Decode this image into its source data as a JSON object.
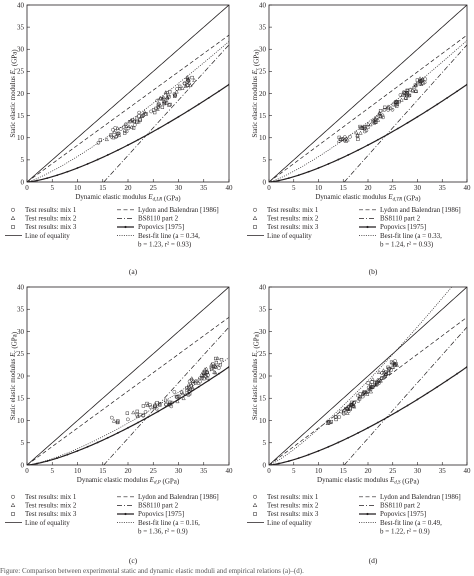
{
  "chart_data": [
    {
      "panel_label": "(a)",
      "type": "scatter",
      "xlabel": "Dynamic elastic modulus E_{d,LR} (GPa)",
      "ylabel": "Static elastic modulus E_c (GPa)",
      "xlim": [
        0,
        40
      ],
      "ylim": [
        0,
        40
      ],
      "x_ticks": [
        "0",
        "5",
        "10",
        "15",
        "20",
        "25",
        "30",
        "35",
        "40"
      ],
      "y_ticks": [
        "0",
        "5",
        "10",
        "15",
        "20",
        "25",
        "30",
        "35",
        "40"
      ],
      "grid": false,
      "scatter_center": [
        [
          15,
          9.5
        ],
        [
          17,
          10.5
        ],
        [
          18,
          11
        ],
        [
          19,
          12
        ],
        [
          20,
          13
        ],
        [
          21,
          13
        ],
        [
          22,
          14
        ],
        [
          23,
          15
        ],
        [
          24,
          15.5
        ],
        [
          25,
          16
        ],
        [
          26,
          17
        ],
        [
          27,
          18
        ],
        [
          28,
          19
        ],
        [
          29,
          20
        ],
        [
          30,
          21
        ],
        [
          31,
          22
        ],
        [
          32,
          23
        ]
      ],
      "scatter_spread": 1.6,
      "scatter_counts": [
        40,
        30,
        30
      ],
      "best_fit": {
        "a": 0.34,
        "b": 1.23,
        "r2": 0.93
      },
      "best_fit_text": "Best-fit line (a = 0.34, b = 1.23, r² = 0.93)"
    },
    {
      "panel_label": "(b)",
      "type": "scatter",
      "xlabel": "Dynamic elastic modulus E_{d,TR} (GPa)",
      "ylabel": "Static elastic modulus E_c (GPa)",
      "xlim": [
        0,
        40
      ],
      "ylim": [
        0,
        40
      ],
      "x_ticks": [
        "0",
        "5",
        "10",
        "15",
        "20",
        "25",
        "30",
        "35",
        "40"
      ],
      "y_ticks": [
        "0",
        "5",
        "10",
        "15",
        "20",
        "25",
        "30",
        "35",
        "40"
      ],
      "grid": false,
      "scatter_center": [
        [
          15,
          9.5
        ],
        [
          17,
          10.5
        ],
        [
          18,
          11
        ],
        [
          19,
          12
        ],
        [
          20,
          13
        ],
        [
          21,
          13.5
        ],
        [
          22,
          14
        ],
        [
          23,
          15
        ],
        [
          24,
          16
        ],
        [
          25,
          17
        ],
        [
          26,
          18
        ],
        [
          27,
          19
        ],
        [
          28,
          20
        ],
        [
          29,
          21
        ],
        [
          30,
          22
        ],
        [
          31,
          23
        ]
      ],
      "scatter_spread": 1.5,
      "scatter_counts": [
        40,
        30,
        30
      ],
      "best_fit": {
        "a": 0.33,
        "b": 1.24,
        "r2": 0.93
      },
      "best_fit_text": "Best-fit line (a = 0.33, b = 1.24, r² = 0.93)"
    },
    {
      "panel_label": "(c)",
      "type": "scatter",
      "xlabel": "Dynamic elastic modulus E_{d,P} (GPa)",
      "ylabel": "Static elastic modulus E_c (GPa)",
      "xlim": [
        0,
        40
      ],
      "ylim": [
        0,
        40
      ],
      "x_ticks": [
        "0",
        "5",
        "10",
        "15",
        "20",
        "25",
        "30",
        "35",
        "40"
      ],
      "y_ticks": [
        "0",
        "5",
        "10",
        "15",
        "20",
        "25",
        "30",
        "35",
        "40"
      ],
      "grid": false,
      "scatter_center": [
        [
          18,
          10
        ],
        [
          20,
          11
        ],
        [
          22,
          12
        ],
        [
          24,
          13
        ],
        [
          26,
          13.5
        ],
        [
          28,
          14
        ],
        [
          30,
          15.5
        ],
        [
          31,
          16
        ],
        [
          32,
          17
        ],
        [
          33,
          18
        ],
        [
          34,
          19
        ],
        [
          35,
          20
        ],
        [
          36,
          21
        ],
        [
          37,
          22
        ],
        [
          38,
          23
        ]
      ],
      "scatter_spread": 1.8,
      "scatter_counts": [
        40,
        30,
        30
      ],
      "best_fit": {
        "a": 0.16,
        "b": 1.36,
        "r2": 0.9
      },
      "best_fit_text": "Best-fit line (a = 0.16, b = 1.36, r² = 0.9)"
    },
    {
      "panel_label": "(d)",
      "type": "scatter",
      "xlabel": "Dynamic elastic modulus E_{d,S} (GPa)",
      "ylabel": "Static elastic modulus E_c (GPa)",
      "xlim": [
        0,
        40
      ],
      "ylim": [
        0,
        40
      ],
      "x_ticks": [
        "0",
        "5",
        "10",
        "15",
        "20",
        "25",
        "30",
        "35",
        "40"
      ],
      "y_ticks": [
        "0",
        "5",
        "10",
        "15",
        "20",
        "25",
        "30",
        "35",
        "40"
      ],
      "grid": false,
      "scatter_center": [
        [
          12,
          9.5
        ],
        [
          14,
          10.5
        ],
        [
          15,
          11.5
        ],
        [
          16,
          12.5
        ],
        [
          17,
          13.5
        ],
        [
          18,
          15
        ],
        [
          19,
          16
        ],
        [
          20,
          17
        ],
        [
          21,
          18
        ],
        [
          22,
          19
        ],
        [
          23,
          20
        ],
        [
          24,
          21
        ],
        [
          25,
          22
        ],
        [
          25.5,
          23
        ]
      ],
      "scatter_spread": 1.4,
      "scatter_counts": [
        40,
        30,
        30
      ],
      "best_fit": {
        "a": 0.49,
        "b": 1.22,
        "r2": 0.9
      },
      "best_fit_text": "Best-fit line (a = 0.49, b = 1.22, r² = 0.9)"
    }
  ],
  "legend": {
    "mix1": "Test results: mix 1",
    "mix2": "Test results: mix 2",
    "mix3": "Test results: mix 3",
    "equality": "Line of equality",
    "lydon": "Lydon and Balendran [1986]",
    "bs8110": "BS8110 part 2",
    "popovics": "Popovics [1975]"
  },
  "caption": "Figure: Comparison between experimental static and dynamic elastic moduli and empirical relations (a)–(d)."
}
